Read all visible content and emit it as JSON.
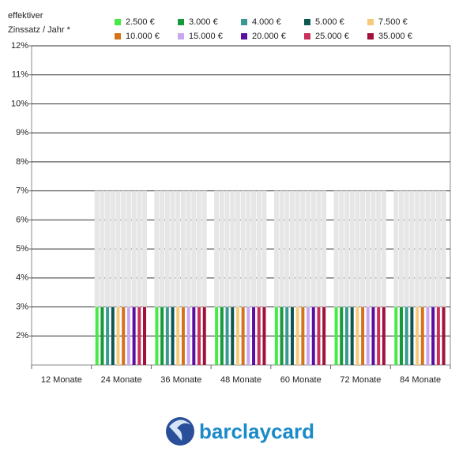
{
  "chart_data": {
    "type": "range_bar",
    "y_axis_label": [
      "effektiver",
      "Zinssatz / Jahr *"
    ],
    "categories": [
      "12 Monate",
      "24 Monate",
      "36 Monate",
      "48 Monate",
      "60 Monate",
      "72 Monate",
      "84 Monate"
    ],
    "range_color": "#e6e6e6",
    "series": [
      {
        "name": "2.500 €",
        "color": "#45ea45",
        "values": [
          null,
          3,
          3,
          3,
          3,
          3,
          3
        ],
        "max_values": [
          null,
          7,
          7,
          7,
          7,
          7,
          7
        ]
      },
      {
        "name": "3.000 €",
        "color": "#15993a",
        "values": [
          null,
          3,
          3,
          3,
          3,
          3,
          3
        ],
        "max_values": [
          null,
          7,
          7,
          7,
          7,
          7,
          7
        ]
      },
      {
        "name": "4.000 €",
        "color": "#3a9a92",
        "values": [
          null,
          3,
          3,
          3,
          3,
          3,
          3
        ],
        "max_values": [
          null,
          7,
          7,
          7,
          7,
          7,
          7
        ]
      },
      {
        "name": "5.000 €",
        "color": "#0d5752",
        "values": [
          null,
          3,
          3,
          3,
          3,
          3,
          3
        ],
        "max_values": [
          null,
          7,
          7,
          7,
          7,
          7,
          7
        ]
      },
      {
        "name": "7.500 €",
        "color": "#f7c97a",
        "values": [
          null,
          3,
          3,
          3,
          3,
          3,
          3
        ],
        "max_values": [
          null,
          7,
          7,
          7,
          7,
          7,
          7
        ]
      },
      {
        "name": "10.000 €",
        "color": "#d4731a",
        "values": [
          null,
          3,
          3,
          3,
          3,
          3,
          3
        ],
        "max_values": [
          null,
          7,
          7,
          7,
          7,
          7,
          7
        ]
      },
      {
        "name": "15.000 €",
        "color": "#c9a7f0",
        "values": [
          null,
          3,
          3,
          3,
          3,
          3,
          3
        ],
        "max_values": [
          null,
          7,
          7,
          7,
          7,
          7,
          7
        ]
      },
      {
        "name": "20.000 €",
        "color": "#5a0fa0",
        "values": [
          null,
          3,
          3,
          3,
          3,
          3,
          3
        ],
        "max_values": [
          null,
          7,
          7,
          7,
          7,
          7,
          7
        ]
      },
      {
        "name": "25.000 €",
        "color": "#c8305a",
        "values": [
          null,
          3,
          3,
          3,
          3,
          3,
          3
        ],
        "max_values": [
          null,
          7,
          7,
          7,
          7,
          7,
          7
        ]
      },
      {
        "name": "35.000 €",
        "color": "#a0103a",
        "values": [
          null,
          3,
          3,
          3,
          3,
          3,
          3
        ],
        "max_values": [
          null,
          7,
          7,
          7,
          7,
          7,
          7
        ]
      }
    ],
    "ylim": [
      1,
      12
    ],
    "yticks": [
      {
        "value": 2,
        "label": "2%"
      },
      {
        "value": 3,
        "label": "3%"
      },
      {
        "value": 4,
        "label": "4%"
      },
      {
        "value": 5,
        "label": "5%"
      },
      {
        "value": 6,
        "label": "6%"
      },
      {
        "value": 7,
        "label": "7%"
      },
      {
        "value": 8,
        "label": "8%"
      },
      {
        "value": 9,
        "label": "9%"
      },
      {
        "value": 10,
        "label": "10%"
      },
      {
        "value": 11,
        "label": "11%"
      },
      {
        "value": 12,
        "label": "12%"
      }
    ],
    "grid": true
  },
  "logo_text": "barclaycard"
}
